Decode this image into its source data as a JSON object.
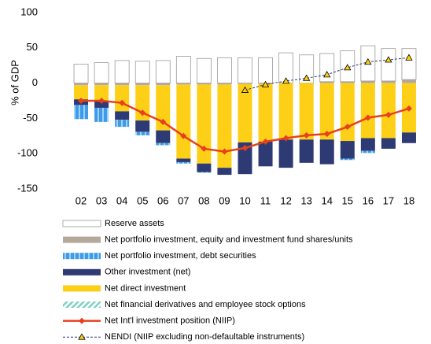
{
  "chart_data": {
    "type": "bar",
    "y_label": "% of GDP",
    "categories": [
      "02",
      "03",
      "04",
      "05",
      "06",
      "07",
      "08",
      "09",
      "10",
      "11",
      "12",
      "13",
      "14",
      "15",
      "16",
      "17",
      "18"
    ],
    "ylim": [
      -150,
      100
    ],
    "yticks": [
      -150,
      -100,
      -50,
      0,
      50,
      100
    ],
    "series": [
      {
        "name": "Reserve assets",
        "color": "#ffffff",
        "values": [
          27,
          29,
          32,
          31,
          32,
          38,
          35,
          36,
          36,
          36,
          43,
          40,
          40,
          44,
          50,
          46,
          44
        ]
      },
      {
        "name": "Net portfolio investment, equity and investment fund shares/units",
        "color": "#b5a99e",
        "values": [
          -3,
          -3,
          -3,
          -3,
          -3,
          -2,
          -2,
          -2,
          -1,
          -1,
          0,
          0,
          2,
          2,
          3,
          3,
          5
        ]
      },
      {
        "name": "Net portfolio investment, debt securities",
        "color": "#3d9be9",
        "values": [
          -20,
          -20,
          -10,
          -5,
          -3,
          -2,
          -1,
          0,
          0,
          0,
          0,
          0,
          0,
          -2,
          -3,
          0,
          0
        ]
      },
      {
        "name": "Other investment (net)",
        "color": "#2e3a73",
        "values": [
          -8,
          -10,
          -12,
          -16,
          -18,
          -5,
          -12,
          -10,
          -45,
          -35,
          -40,
          -33,
          -35,
          -25,
          -18,
          -15,
          -15
        ]
      },
      {
        "name": "Net direct investment",
        "color": "#fdd017",
        "values": [
          -20,
          -22,
          -37,
          -50,
          -64,
          -105,
          -112,
          -118,
          -83,
          -82,
          -80,
          -80,
          -80,
          -82,
          -78,
          -78,
          -70
        ]
      },
      {
        "name": "Net financial derivatives and employee stock options",
        "color": "#7fd1c0",
        "values": [
          0,
          0,
          0,
          0,
          0,
          0,
          0,
          0,
          0,
          0,
          0,
          0,
          0,
          0,
          0,
          0,
          0
        ]
      },
      {
        "name": "Net Int'l investment position (NIIP)",
        "type": "line",
        "color": "#e8401c",
        "values": [
          -25,
          -25,
          -28,
          -42,
          -55,
          -75,
          -93,
          -97,
          -92,
          -83,
          -78,
          -74,
          -72,
          -62,
          -49,
          -45,
          -36
        ]
      },
      {
        "name": "NENDI (NIIP excluding non-defaultable instruments)",
        "type": "line",
        "color": "#2e3a73",
        "values": [
          null,
          null,
          null,
          null,
          null,
          null,
          null,
          null,
          -10,
          -2,
          3,
          7,
          12,
          22,
          30,
          33,
          36
        ]
      }
    ]
  }
}
